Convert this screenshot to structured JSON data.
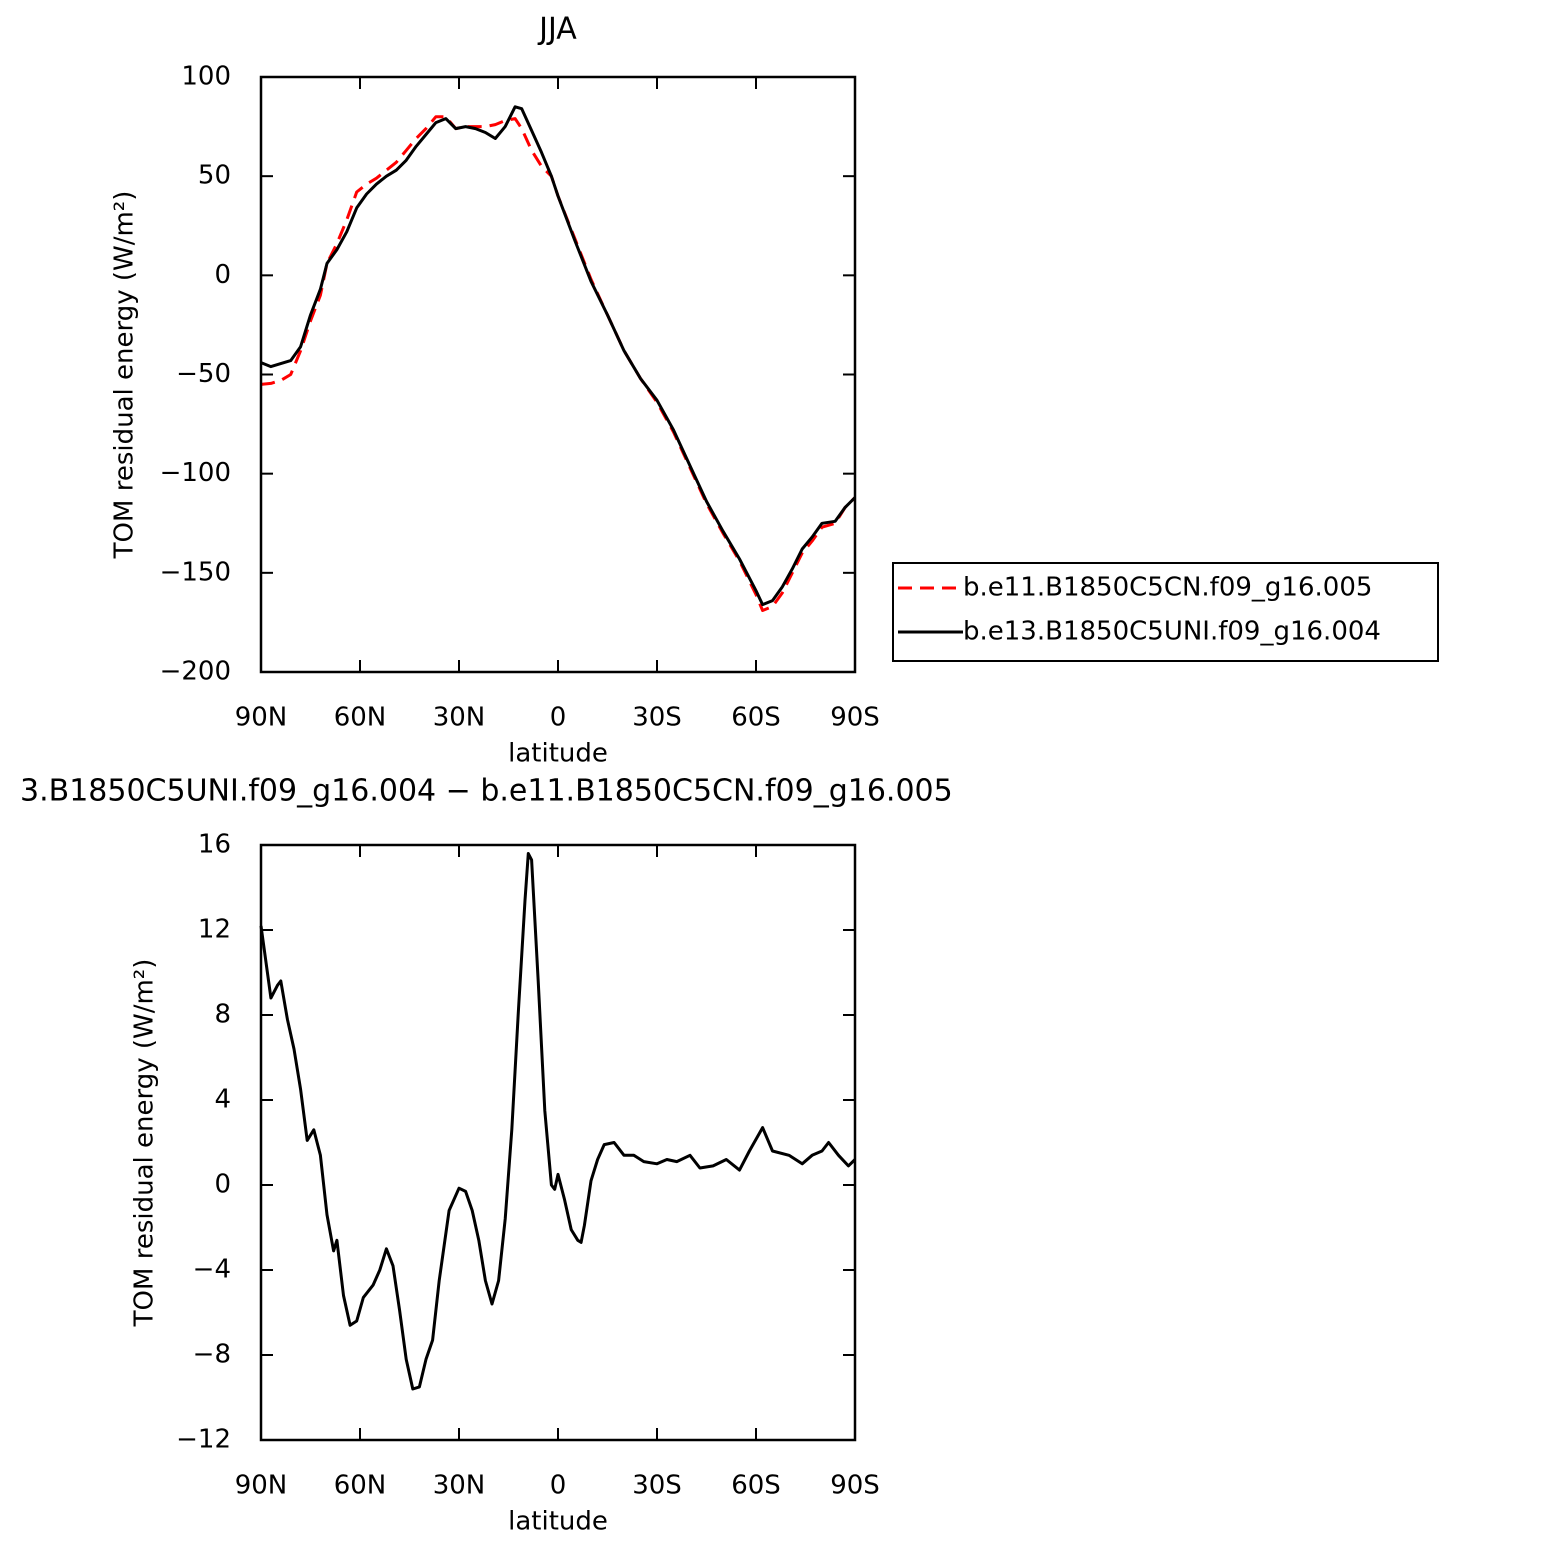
{
  "chart_data": [
    {
      "type": "line",
      "title": "JJA",
      "x_label": "latitude",
      "y_label": "TOM residual energy (W/m²)",
      "x": [
        90,
        87,
        84,
        81,
        78,
        75,
        72,
        70,
        67,
        64,
        61,
        58,
        55,
        52,
        49,
        46,
        43,
        40,
        37,
        34,
        31,
        28,
        25,
        22,
        19,
        16,
        13,
        11,
        8,
        5,
        2,
        0,
        -5,
        -10,
        -15,
        -20,
        -25,
        -30,
        -35,
        -40,
        -45,
        -50,
        -55,
        -60,
        -62,
        -65,
        -68,
        -71,
        -74,
        -77,
        -80,
        -84,
        -87,
        -90
      ],
      "series": [
        {
          "name": "b.e11.B1850C5CN.f09_g16.005",
          "color": "#ff0000",
          "dashed": true,
          "values": [
            -55,
            -54.5,
            -53,
            -50,
            -38,
            -23,
            -10,
            6,
            16,
            28,
            42,
            46,
            49,
            53,
            57,
            63,
            69,
            74,
            80,
            80,
            74,
            75,
            75,
            75,
            76,
            78,
            79,
            74,
            63,
            55,
            50,
            40,
            19,
            -2,
            -20,
            -38,
            -52,
            -64,
            -79,
            -97,
            -115,
            -130,
            -144,
            -161,
            -169,
            -167,
            -160,
            -150,
            -140,
            -134,
            -127,
            -125,
            -117,
            -112
          ]
        },
        {
          "name": "b.e13.B1850C5UNI.f09_g16.004",
          "color": "#000000",
          "dashed": false,
          "values": [
            -44,
            -46,
            -44.5,
            -43,
            -36,
            -20,
            -7,
            6,
            13,
            22,
            34,
            41,
            46,
            50,
            53,
            58,
            65,
            71,
            77,
            79,
            74,
            75,
            74,
            72,
            69,
            75,
            85,
            84,
            73,
            62,
            50,
            40,
            18,
            -3,
            -20,
            -38,
            -52,
            -63,
            -78,
            -96,
            -114,
            -129,
            -143,
            -159,
            -166,
            -164,
            -157,
            -148,
            -138,
            -132,
            -125,
            -124,
            -117,
            -112
          ]
        }
      ],
      "xlim": [
        90,
        -90
      ],
      "xticks": [
        {
          "value": 90,
          "label": "90N"
        },
        {
          "value": 60,
          "label": "60N"
        },
        {
          "value": 30,
          "label": "30N"
        },
        0,
        {
          "value": -30,
          "label": "30S"
        },
        {
          "value": -60,
          "label": "60S"
        },
        {
          "value": -90,
          "label": "90S"
        }
      ],
      "ylim": [
        -200,
        100
      ],
      "yticks": [
        100,
        50,
        0,
        {
          "value": -50,
          "label": "−50"
        },
        {
          "value": -100,
          "label": "−100"
        },
        {
          "value": -150,
          "label": "−150"
        },
        {
          "value": -200,
          "label": "−200"
        }
      ],
      "legend": "right"
    },
    {
      "type": "line",
      "title": "3.B1850C5UNI.f09_g16.004 − b.e11.B1850C5CN.f09_g16.005",
      "x_label": "latitude",
      "y_label": "TOM residual energy (W/m²)",
      "x": [
        90,
        87,
        85,
        84,
        82,
        80,
        78,
        76,
        74,
        72,
        70,
        68,
        67,
        65,
        63,
        61,
        59,
        56,
        54,
        52,
        50,
        48,
        46,
        44,
        42,
        40,
        38,
        36,
        33,
        30,
        28,
        26,
        24,
        22,
        20,
        18,
        16,
        14,
        12,
        10,
        9,
        8,
        6,
        4,
        2,
        1,
        0,
        -2,
        -4,
        -6,
        -7,
        -8,
        -10,
        -12,
        -14,
        -17,
        -20,
        -23,
        -26,
        -30,
        -33,
        -36,
        -40,
        -43,
        -47,
        -51,
        -55,
        -58,
        -62,
        -65,
        -70,
        -74,
        -77,
        -80,
        -82,
        -85,
        -88,
        -90
      ],
      "series": [
        {
          "color": "#000000",
          "dashed": false,
          "values": [
            12.2,
            8.8,
            9.4,
            9.6,
            7.8,
            6.4,
            4.5,
            2.1,
            2.6,
            1.4,
            -1.4,
            -3.1,
            -2.6,
            -5.2,
            -6.6,
            -6.4,
            -5.3,
            -4.7,
            -4.0,
            -3.0,
            -3.8,
            -5.9,
            -8.2,
            -9.6,
            -9.5,
            -8.2,
            -7.3,
            -4.5,
            -1.2,
            -0.15,
            -0.3,
            -1.2,
            -2.6,
            -4.5,
            -5.6,
            -4.5,
            -1.6,
            2.6,
            8.2,
            13.4,
            15.6,
            15.3,
            9.6,
            3.5,
            0,
            -0.2,
            0.5,
            -0.7,
            -2.1,
            -2.6,
            -2.7,
            -1.9,
            0.2,
            1.2,
            1.9,
            2.0,
            1.4,
            1.4,
            1.1,
            1.0,
            1.2,
            1.1,
            1.4,
            0.8,
            0.9,
            1.2,
            0.7,
            1.6,
            2.7,
            1.6,
            1.4,
            1.0,
            1.4,
            1.6,
            2.0,
            1.4,
            0.9,
            1.2
          ]
        }
      ],
      "xlim": [
        90,
        -90
      ],
      "xticks": [
        {
          "value": 90,
          "label": "90N"
        },
        {
          "value": 60,
          "label": "60N"
        },
        {
          "value": 30,
          "label": "30N"
        },
        0,
        {
          "value": -30,
          "label": "30S"
        },
        {
          "value": -60,
          "label": "60S"
        },
        {
          "value": -90,
          "label": "90S"
        }
      ],
      "ylim": [
        -12,
        16
      ],
      "yticks": [
        16,
        12,
        8,
        4,
        0,
        {
          "value": -4,
          "label": "−4"
        },
        {
          "value": -8,
          "label": "−8"
        },
        {
          "value": -12,
          "label": "−12"
        }
      ]
    }
  ]
}
